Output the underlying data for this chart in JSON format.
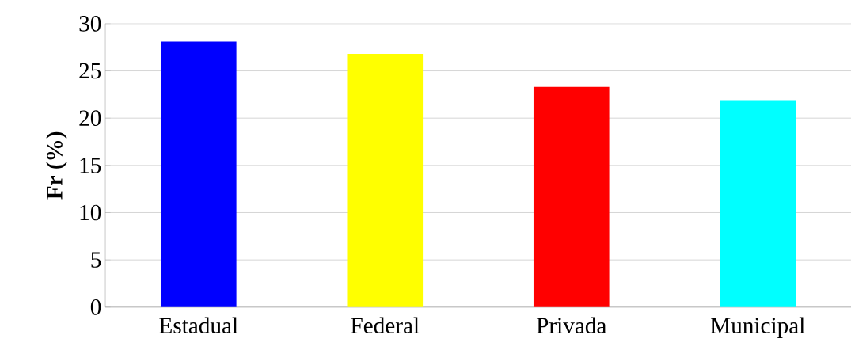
{
  "chart_data": {
    "type": "bar",
    "ylabel": "**Fr (%)**",
    "categories": [
      "Estadual",
      "Federal",
      "Privada",
      "Municipal"
    ],
    "values": [
      28.1,
      26.8,
      23.3,
      21.9
    ],
    "colors": [
      "#0000ff",
      "#ffff00",
      "#ff0000",
      "#00ffff"
    ],
    "ylim": [
      0,
      30
    ],
    "yticks": [
      0,
      5,
      10,
      15,
      20,
      25,
      30
    ],
    "grid": "y"
  }
}
